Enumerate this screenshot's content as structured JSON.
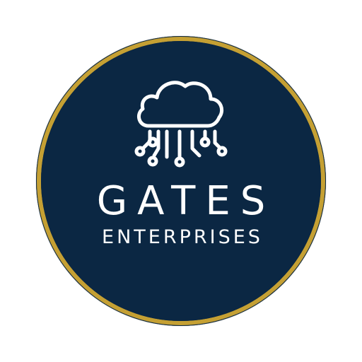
{
  "logo": {
    "title": "GATES",
    "subtitle": "ENTERPRISES",
    "icon": "cloud-circuit-icon",
    "colors": {
      "background": "#ffffff",
      "navy": "#0b2743",
      "gold": "#c5a033",
      "text": "#ffffff"
    }
  }
}
